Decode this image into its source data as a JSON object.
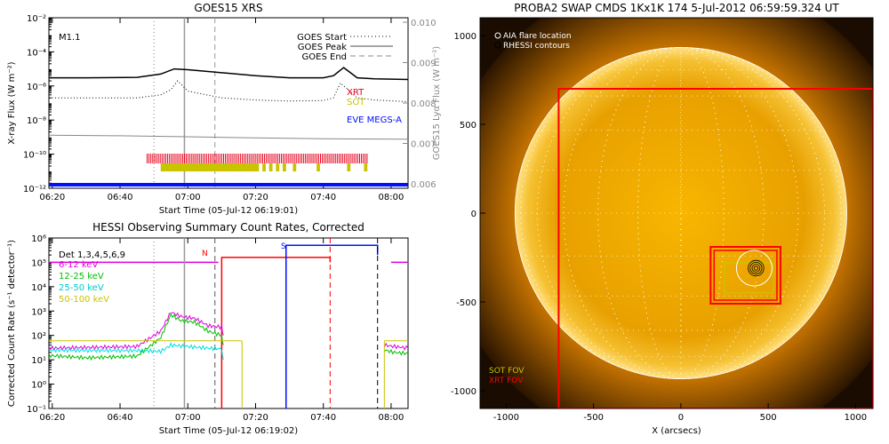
{
  "colors": {
    "xrt": "#e8001c",
    "sot": "#c8c400",
    "eve": "#0010ff",
    "det": "#000000",
    "e6_12": "#e000e0",
    "e12_25": "#00c000",
    "e25_50": "#00e0e0",
    "e50_100": "#c8c400",
    "hessi_red": "#ff0000",
    "hessi_blue": "#0010ff",
    "sun_core": "#f8b600",
    "sun_edge": "#a86000"
  },
  "chart_data": [
    {
      "type": "line",
      "title": "GOES15 XRS",
      "xlabel": "Start Time (05-Jul-12 06:19:01)",
      "ylabel": "X-ray Flux (W m⁻²)",
      "y2label": "GOES15 Lyα Flux (W m⁻²)",
      "x_ticks": [
        "06:20",
        "06:40",
        "07:00",
        "07:20",
        "07:40",
        "08:00"
      ],
      "y_ticks": [
        "10⁻¹²",
        "10⁻¹⁰",
        "10⁻⁸",
        "10⁻⁶",
        "10⁻⁴",
        "10⁻²"
      ],
      "y2_ticks": [
        "0.006",
        "0.007",
        "0.008",
        "0.009",
        "0.010"
      ],
      "y_scale": "log",
      "ylim": [
        1e-12,
        0.01
      ],
      "xlim_minutes": [
        19,
        125
      ],
      "annotation": "M1.1",
      "legend": [
        {
          "label": "GOES Start",
          "style": "dotted"
        },
        {
          "label": "GOES Peak",
          "style": "solid"
        },
        {
          "label": "GOES End",
          "style": "dashed"
        }
      ],
      "instrument_labels": [
        "XRT",
        "SOT",
        "EVE MEGS-A"
      ],
      "series": [
        {
          "name": "",
          "x_minutes": [
            19,
            30,
            45,
            52,
            56,
            60,
            70,
            80,
            90,
            100,
            103,
            106,
            110,
            115,
            125
          ],
          "y": [
            3e-06,
            3e-06,
            3.2e-06,
            5e-06,
            1e-05,
            9e-06,
            6e-06,
            4e-06,
            3e-06,
            3e-06,
            4e-06,
            1.2e-05,
            3e-06,
            2.6e-06,
            2.4e-06
          ]
        },
        {
          "name": "",
          "x_minutes": [
            19,
            30,
            45,
            52,
            55,
            57,
            60,
            70,
            80,
            90,
            100,
            103,
            105,
            110,
            115,
            125
          ],
          "y": [
            2e-07,
            2e-07,
            2e-07,
            3e-07,
            6e-07,
            2e-06,
            5e-07,
            2e-07,
            1.5e-07,
            1.3e-07,
            1.4e-07,
            2e-07,
            1.5e-06,
            2e-07,
            1.5e-07,
            1.2e-07
          ]
        },
        {
          "name": "",
          "x_minutes": [
            19,
            40,
            60,
            80,
            100,
            125
          ],
          "y": [
            1.3e-09,
            1.2e-09,
            1.05e-09,
            9e-10,
            8e-10,
            7.5e-10
          ]
        }
      ],
      "coverage": {
        "xrt_minutes": [
          [
            48,
            113
          ]
        ],
        "sot_minutes": [
          [
            52,
            81
          ],
          [
            82,
            83
          ],
          [
            84,
            85
          ],
          [
            86,
            87
          ],
          [
            88,
            89
          ],
          [
            91,
            92
          ],
          [
            98,
            99
          ],
          [
            107,
            108
          ],
          [
            112,
            113
          ]
        ],
        "eve_minutes": [
          [
            19,
            125
          ]
        ]
      },
      "markers_minutes": {
        "start": 50,
        "peak": 59,
        "end": 68
      }
    },
    {
      "type": "line",
      "title": "HESSI Observing Summary Count Rates, Corrected",
      "xlabel": "Start Time (05-Jul-12 06:19:02)",
      "ylabel": "Corrected Count Rate (s⁻¹ detector⁻¹)",
      "x_ticks": [
        "06:20",
        "06:40",
        "07:00",
        "07:20",
        "07:40",
        "08:00"
      ],
      "y_ticks": [
        "10⁻¹",
        "10⁰",
        "10¹",
        "10²",
        "10³",
        "10⁴",
        "10⁵",
        "10⁶"
      ],
      "y_scale": "log",
      "ylim": [
        0.1,
        1000000.0
      ],
      "legend": [
        "Det 1,3,4,5,6,9",
        "6-12 keV",
        "12-25 keV",
        "25-50 keV",
        "50-100 keV"
      ],
      "flags": [
        "N",
        "S"
      ],
      "series": [
        {
          "name": "6-12 keV",
          "x_minutes": [
            19,
            30,
            45,
            52,
            55,
            58,
            62,
            66,
            70,
            70.5
          ],
          "y": [
            30,
            32,
            35,
            150,
            900,
            600,
            500,
            250,
            220,
            100
          ]
        },
        {
          "name": "12-25 keV",
          "x_minutes": [
            19,
            30,
            45,
            52,
            55,
            58,
            62,
            66,
            70,
            70.5
          ],
          "y": [
            15,
            12,
            14,
            80,
            700,
            400,
            350,
            150,
            100,
            40
          ]
        },
        {
          "name": "25-50 keV",
          "x_minutes": [
            19,
            30,
            45,
            52,
            55,
            60,
            66,
            70,
            70.5
          ],
          "y": [
            25,
            24,
            24,
            22,
            40,
            35,
            30,
            28,
            10
          ]
        },
        {
          "name": "50-100 keV",
          "x_minutes": [
            19,
            30,
            45,
            52,
            55,
            60,
            70,
            76
          ],
          "y": [
            60,
            60,
            60,
            60,
            60,
            60,
            60,
            60
          ]
        },
        {
          "name": "6-12 keV",
          "x_minutes": [
            118,
            121,
            125
          ],
          "y": [
            40,
            35,
            30
          ]
        },
        {
          "name": "12-25 keV",
          "x_minutes": [
            118,
            121,
            125
          ],
          "y": [
            25,
            20,
            18
          ]
        },
        {
          "name": "50-100 keV",
          "x_minutes": [
            118,
            121,
            125
          ],
          "y": [
            60,
            60,
            60
          ]
        }
      ],
      "markers_minutes": {
        "start": 50,
        "peak": 59,
        "end": 68,
        "red_dashed_1": 70,
        "red_dashed_2": 102,
        "blue_dashed": 116
      }
    },
    {
      "type": "scatter",
      "title": "PROBA2 SWAP CMDS 1Kx1K 174   5-Jul-2012 06:59:59.324 UT",
      "xlabel": "X (arcsecs)",
      "ylabel": "",
      "x_ticks": [
        "-1000",
        "-500",
        "0",
        "500",
        "1000"
      ],
      "y_ticks": [
        "-1000",
        "-500",
        "0",
        "500",
        "1000"
      ],
      "xlim": [
        -1150,
        1100
      ],
      "ylim": [
        -1100,
        1100
      ],
      "legend": [
        {
          "label": "AIA flare location"
        },
        {
          "label": "RHESSI contours"
        }
      ],
      "fov_labels": [
        "SOT FOV",
        "XRT FOV"
      ],
      "disk_radius": 950,
      "xrt_fov": {
        "x": [
          -700,
          1100
        ],
        "y": [
          -1100,
          700
        ]
      },
      "sot_fov": {
        "x": [
          170,
          570
        ],
        "y": [
          -510,
          -190
        ]
      },
      "flare_center": {
        "x": 420,
        "y": -310
      }
    }
  ]
}
